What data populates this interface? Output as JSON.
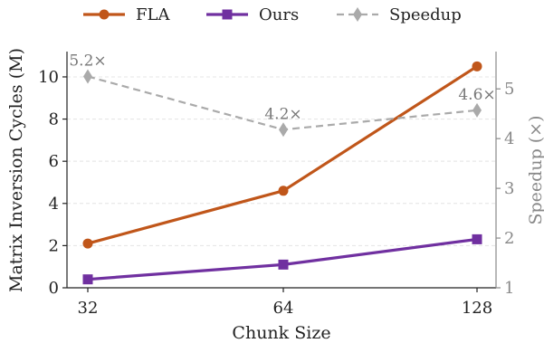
{
  "chart_data": {
    "type": "line",
    "xlabel": "Chunk Size",
    "ylabel_left": "Matrix Inversion Cycles (M)",
    "ylabel_right": "Speedup (×)",
    "categories": [
      "32",
      "64",
      "128"
    ],
    "ylim_left": [
      0,
      11.2
    ],
    "yticks_left": [
      "0",
      "2",
      "4",
      "6",
      "8",
      "10"
    ],
    "ylim_right": [
      1,
      5.75
    ],
    "yticks_right": [
      "1",
      "2",
      "3",
      "4",
      "5"
    ],
    "grid": true,
    "legend_position": "top-center",
    "series": [
      {
        "name": "FLA",
        "axis": "left",
        "values": [
          2.1,
          4.6,
          10.5
        ],
        "color": "#c0561a",
        "marker": "circle",
        "style": "solid"
      },
      {
        "name": "Ours",
        "axis": "left",
        "values": [
          0.4,
          1.1,
          2.3
        ],
        "color": "#7030a0",
        "marker": "square",
        "style": "solid"
      },
      {
        "name": "Speedup",
        "axis": "right",
        "values": [
          5.25,
          4.18,
          4.57
        ],
        "color": "#aaaaaa",
        "marker": "diamond",
        "style": "dashed"
      }
    ],
    "annotations": [
      "5.2×",
      "4.2×",
      "4.6×"
    ]
  }
}
